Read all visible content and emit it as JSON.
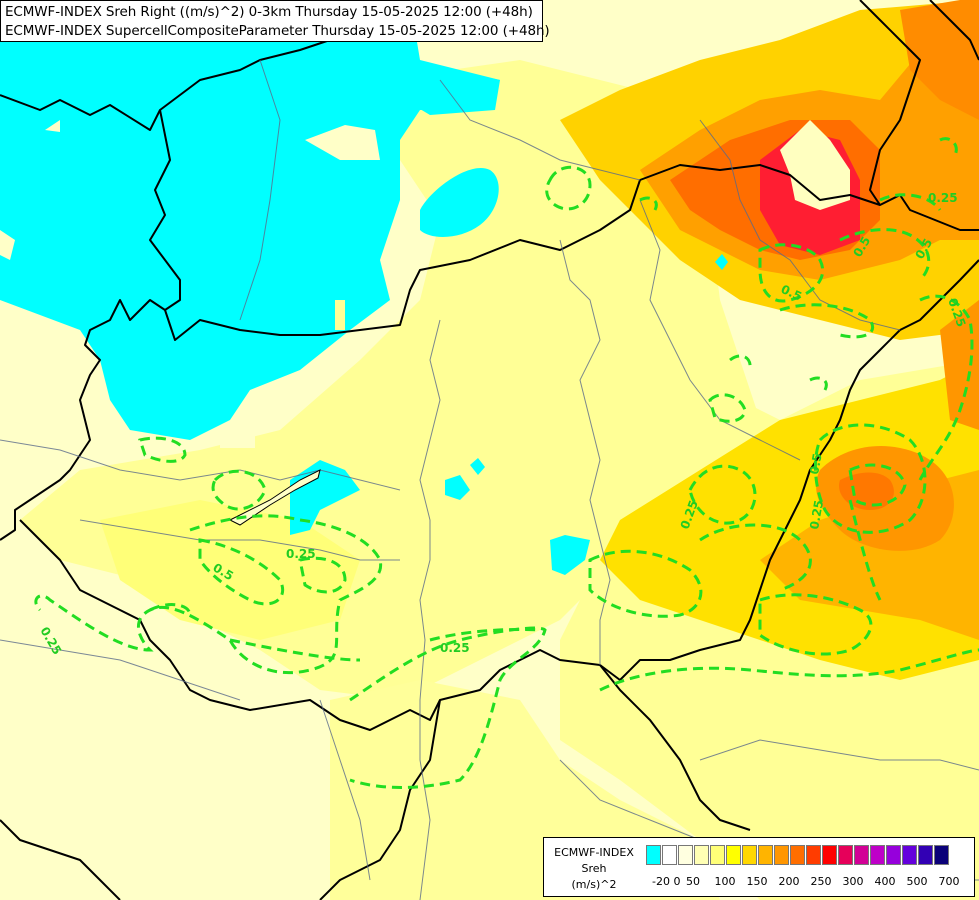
{
  "header": {
    "line1": "ECMWF-INDEX Sreh Right ((m/s)^2) 0-3km Thursday 15-05-2025 12:00 (+48h)",
    "line2": "ECMWF-INDEX SupercellCompositeParameter Thursday 15-05-2025 12:00 (+48h)"
  },
  "legend": {
    "line1": "ECMWF-INDEX",
    "line2": "Sreh",
    "line3": "(m/s)^2",
    "colors": [
      "#00ffff",
      "#ffffff",
      "#ffffe0",
      "#ffffb4",
      "#ffff78",
      "#ffff00",
      "#ffd700",
      "#ffb400",
      "#ff9600",
      "#ff6e00",
      "#ff3c00",
      "#ff0000",
      "#e6005a",
      "#d20096",
      "#be00c8",
      "#9600dc",
      "#6400dc",
      "#3200b4",
      "#0a0078"
    ],
    "ticks": [
      "-20",
      "0",
      "50",
      "100",
      "150",
      "200",
      "250",
      "300",
      "400",
      "500",
      "700"
    ]
  },
  "contours": {
    "color": "#22dd22",
    "labels": [
      "0.25",
      "0.25",
      "0.25",
      "0.5",
      "0.5",
      "0.25",
      "0.25",
      "0.5",
      "0.25",
      "0.25",
      "0.5",
      "0.5"
    ]
  }
}
